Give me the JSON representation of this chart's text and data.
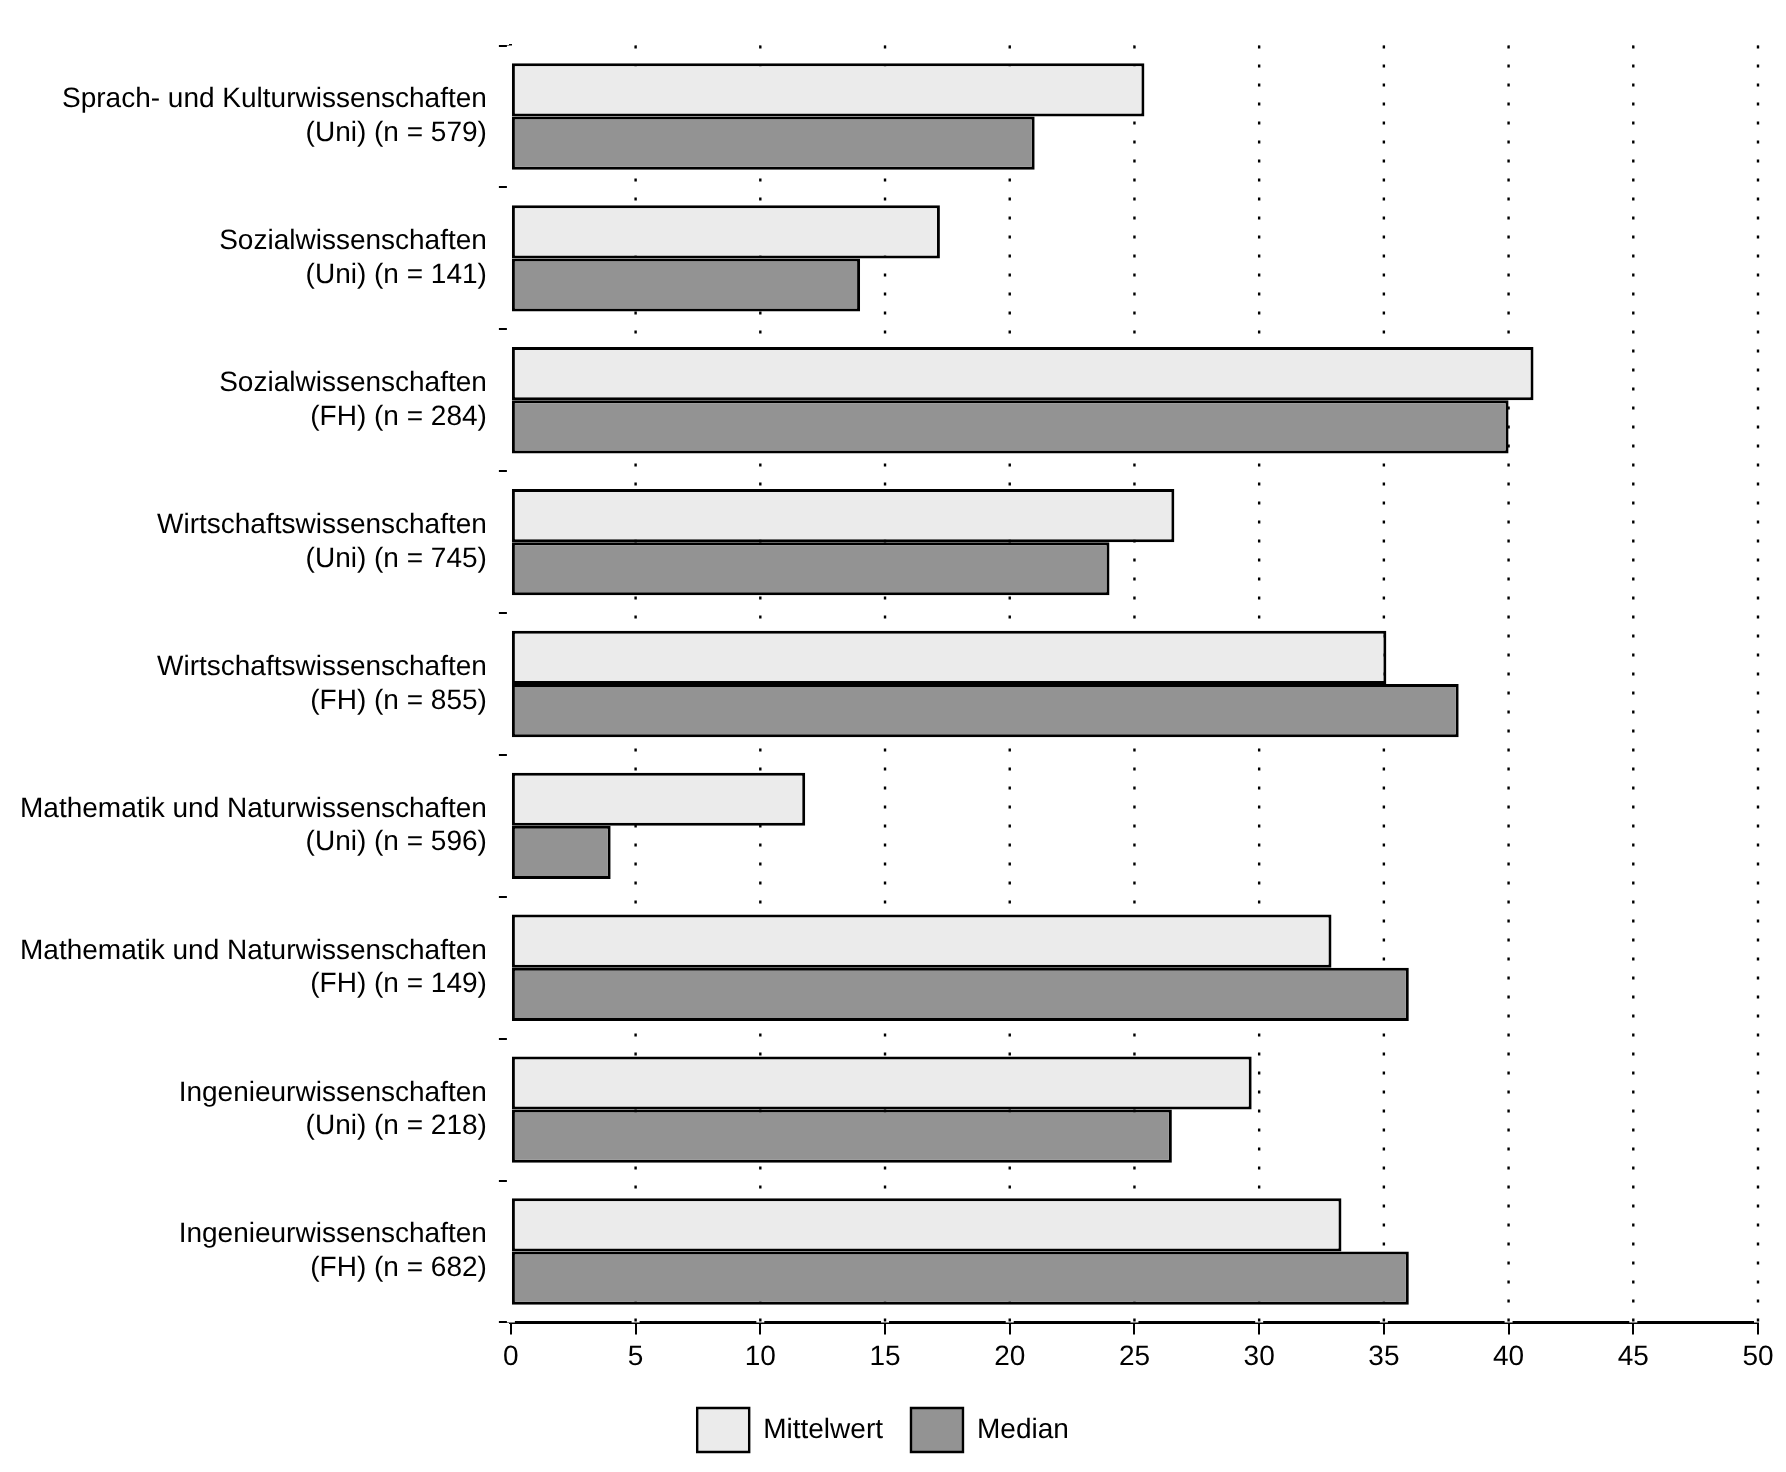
{
  "chart_data": {
    "type": "bar",
    "orientation": "horizontal",
    "categories": [
      "Sprach- und Kulturwissenschaften\n(Uni) (n = 579)",
      "Sozialwissenschaften\n(Uni) (n = 141)",
      "Sozialwissenschaften\n(FH) (n = 284)",
      "Wirtschaftswissenschaften\n(Uni) (n = 745)",
      "Wirtschaftswissenschaften\n(FH) (n = 855)",
      "Mathematik und Naturwissenschaften\n(Uni) (n = 596)",
      "Mathematik und Naturwissenschaften\n(FH) (n = 149)",
      "Ingenieurwissenschaften\n(Uni) (n = 218)",
      "Ingenieurwissenschaften\n(FH) (n = 682)"
    ],
    "series": [
      {
        "name": "Mittelwert",
        "color": "#ebebeb",
        "values": [
          25.4,
          17.2,
          41.0,
          26.6,
          35.1,
          11.8,
          32.9,
          29.7,
          33.3
        ]
      },
      {
        "name": "Median",
        "color": "#939393",
        "values": [
          21.0,
          14.0,
          40.0,
          24.0,
          38.0,
          4.0,
          36.0,
          26.5,
          36.0
        ]
      }
    ],
    "xlim": [
      0,
      50
    ],
    "xticks": [
      0,
      5,
      10,
      15,
      20,
      25,
      30,
      35,
      40,
      45,
      50
    ],
    "grid": "x",
    "legend": "bottom"
  }
}
